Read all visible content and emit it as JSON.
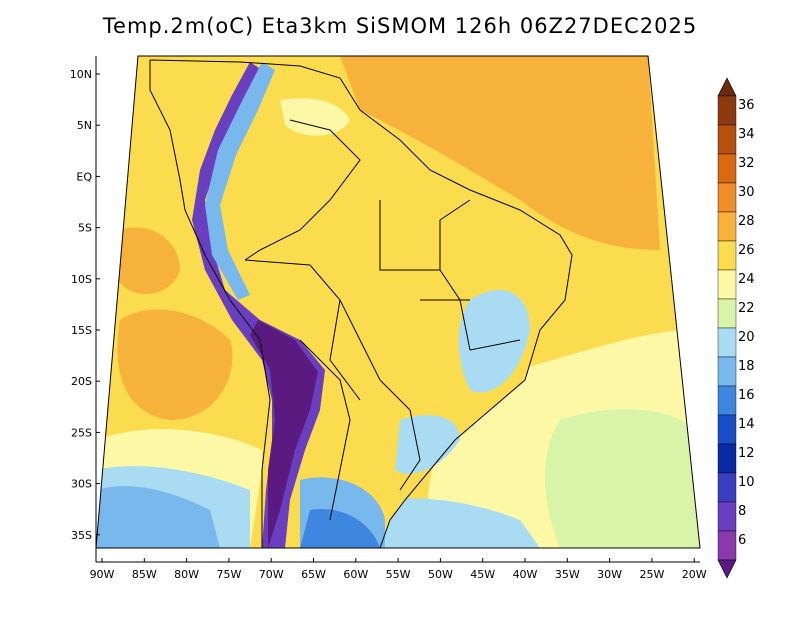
{
  "title": "Temp.2m(oC) Eta3km SiSMOM 126h 06Z27DEC2025",
  "lat_ticks": [
    "10N",
    "5N",
    "EQ",
    "5S",
    "10S",
    "15S",
    "20S",
    "25S",
    "30S",
    "35S"
  ],
  "lon_ticks": [
    "90W",
    "85W",
    "80W",
    "75W",
    "70W",
    "65W",
    "60W",
    "55W",
    "50W",
    "45W",
    "40W",
    "35W",
    "30W",
    "25W",
    "20W"
  ],
  "colorbar": {
    "labels": [
      "36",
      "34",
      "32",
      "30",
      "28",
      "26",
      "24",
      "22",
      "20",
      "18",
      "16",
      "14",
      "12",
      "10",
      "8",
      "6"
    ],
    "colors": [
      "#6b2a0e",
      "#8e3a10",
      "#b5500f",
      "#d86a12",
      "#f08c2a",
      "#f6b23b",
      "#fbdc4e",
      "#fcf8a6",
      "#d7f4a8",
      "#a9dcf2",
      "#79b8ec",
      "#3f86e0",
      "#1a4ec8",
      "#0a2aa3",
      "#3b3fbf",
      "#6a3fbf",
      "#8a3aaa",
      "#5a1a80"
    ]
  },
  "colors": {
    "ocean_warm": "#f6b23b",
    "ocean_mid": "#fbdc4e",
    "ocean_cool": "#fcf8a6",
    "ocean_cold": "#a9dcf2",
    "ocean_colder": "#79b8ec",
    "land": "#fbdc4e",
    "andes_high": "#5a1a80",
    "andes_mid": "#6a3fbf",
    "highland_cool": "#79b8ec"
  }
}
